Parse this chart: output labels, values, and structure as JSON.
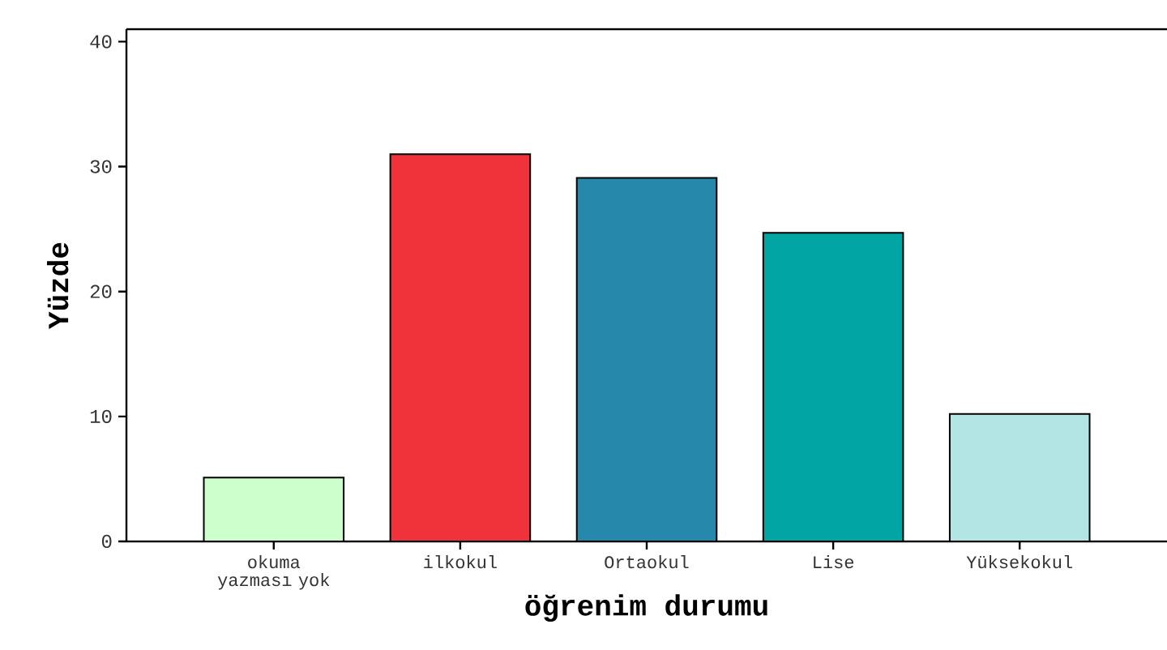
{
  "chart_data": {
    "type": "bar",
    "xlabel": "öğrenim durumu",
    "ylabel": "Yüzde",
    "categories": [
      "okuma yazması yok",
      "ilkokul",
      "Ortaokul",
      "Lise",
      "Yüksekokul"
    ],
    "values": [
      5.1,
      31.0,
      29.1,
      24.7,
      10.2
    ],
    "colors": [
      "#ccffcc",
      "#f0333a",
      "#2689ab",
      "#00a5a4",
      "#b3e5e5"
    ],
    "ylim": [
      0,
      41
    ],
    "yticks": [
      0,
      10,
      20,
      30,
      40
    ]
  }
}
